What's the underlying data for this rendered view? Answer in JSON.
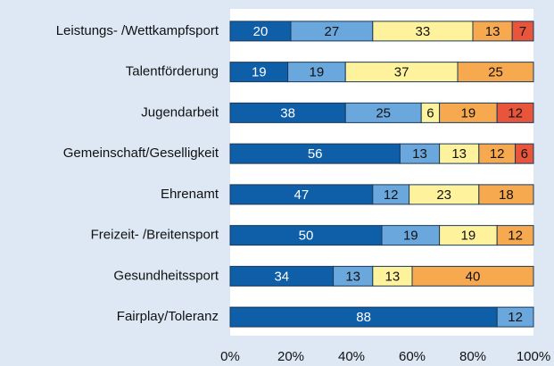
{
  "chart_data": {
    "type": "stacked_barh",
    "categories": [
      "Leistungs- /Wettkampfsport",
      "Talentförderung",
      "Jugendarbeit",
      "Gemeinschaft/Geselligkeit",
      "Ehrenamt",
      "Freizeit- /Breitensport",
      "Gesundheitssport",
      "Fairplay/Toleranz"
    ],
    "series": [
      {
        "color": "#0f5ea8",
        "values": [
          20,
          19,
          38,
          56,
          47,
          50,
          34,
          88
        ]
      },
      {
        "color": "#6aa7dd",
        "values": [
          27,
          19,
          25,
          13,
          12,
          19,
          13,
          12
        ]
      },
      {
        "color": "#fff29c",
        "values": [
          33,
          37,
          6,
          13,
          23,
          19,
          13,
          null
        ]
      },
      {
        "color": "#f6a94f",
        "values": [
          13,
          25,
          19,
          12,
          18,
          12,
          40,
          null
        ]
      },
      {
        "color": "#e8553a",
        "values": [
          7,
          null,
          12,
          6,
          null,
          null,
          null,
          null
        ]
      }
    ],
    "xlim": [
      0,
      100
    ],
    "xticks": [
      {
        "value": 0,
        "label": "0%"
      },
      {
        "value": 20,
        "label": "20%"
      },
      {
        "value": 40,
        "label": "40%"
      },
      {
        "value": 60,
        "label": "60%"
      },
      {
        "value": 80,
        "label": "80%"
      },
      {
        "value": 100,
        "label": "100%"
      }
    ],
    "grid": false
  }
}
